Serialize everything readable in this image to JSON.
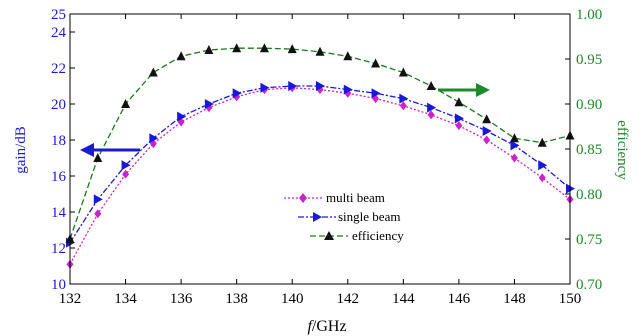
{
  "chart_data": {
    "type": "line",
    "xlabel_italic": "f",
    "xlabel_rest": "/GHz",
    "ylabel": "gain/dB",
    "y2label": "efficiency",
    "x": [
      132,
      133,
      134,
      135,
      136,
      137,
      138,
      139,
      140,
      141,
      142,
      143,
      144,
      145,
      146,
      147,
      148,
      149,
      150
    ],
    "xlim": [
      132,
      150
    ],
    "ylim": [
      10,
      25
    ],
    "y2lim": [
      0.7,
      1.0
    ],
    "xticks": [
      "132",
      "134",
      "136",
      "138",
      "140",
      "142",
      "144",
      "146",
      "148",
      "150"
    ],
    "yticks": [
      "10",
      "12",
      "14",
      "16",
      "18",
      "20",
      "22",
      "24",
      "25"
    ],
    "y2ticks": [
      "0.70",
      "0.75",
      "0.80",
      "0.85",
      "0.90",
      "0.95",
      "1.00"
    ],
    "series": [
      {
        "name": "multi beam",
        "axis": "left",
        "color": "#cc22cc",
        "marker": "diamond",
        "dash": "2,2",
        "values": [
          11.1,
          13.9,
          16.1,
          17.8,
          19.0,
          19.8,
          20.4,
          20.8,
          20.9,
          20.8,
          20.6,
          20.3,
          19.9,
          19.4,
          18.8,
          18.0,
          17.0,
          15.9,
          14.7
        ]
      },
      {
        "name": "single beam",
        "axis": "left",
        "color": "#1a1ad6",
        "marker": "triangle-right",
        "dash": "6,2,2,2",
        "values": [
          12.3,
          14.7,
          16.6,
          18.1,
          19.3,
          20.0,
          20.6,
          20.9,
          21.0,
          21.0,
          20.8,
          20.6,
          20.3,
          19.8,
          19.2,
          18.5,
          17.7,
          16.6,
          15.3
        ]
      },
      {
        "name": "efficiency",
        "axis": "right",
        "color": "#1a7a1a",
        "marker": "triangle-up",
        "dash": "6,3",
        "values": [
          0.75,
          0.84,
          0.9,
          0.935,
          0.953,
          0.96,
          0.962,
          0.962,
          0.961,
          0.958,
          0.953,
          0.945,
          0.935,
          0.92,
          0.902,
          0.883,
          0.862,
          0.857,
          0.865
        ]
      }
    ],
    "legend": {
      "placement": "center-bottom"
    },
    "annotations": [
      {
        "type": "arrow",
        "direction": "left",
        "color": "#1a1ad6",
        "meaning": "left-axis"
      },
      {
        "type": "arrow",
        "direction": "right",
        "color": "#1a8a2a",
        "meaning": "right-axis"
      }
    ],
    "grid": false
  }
}
